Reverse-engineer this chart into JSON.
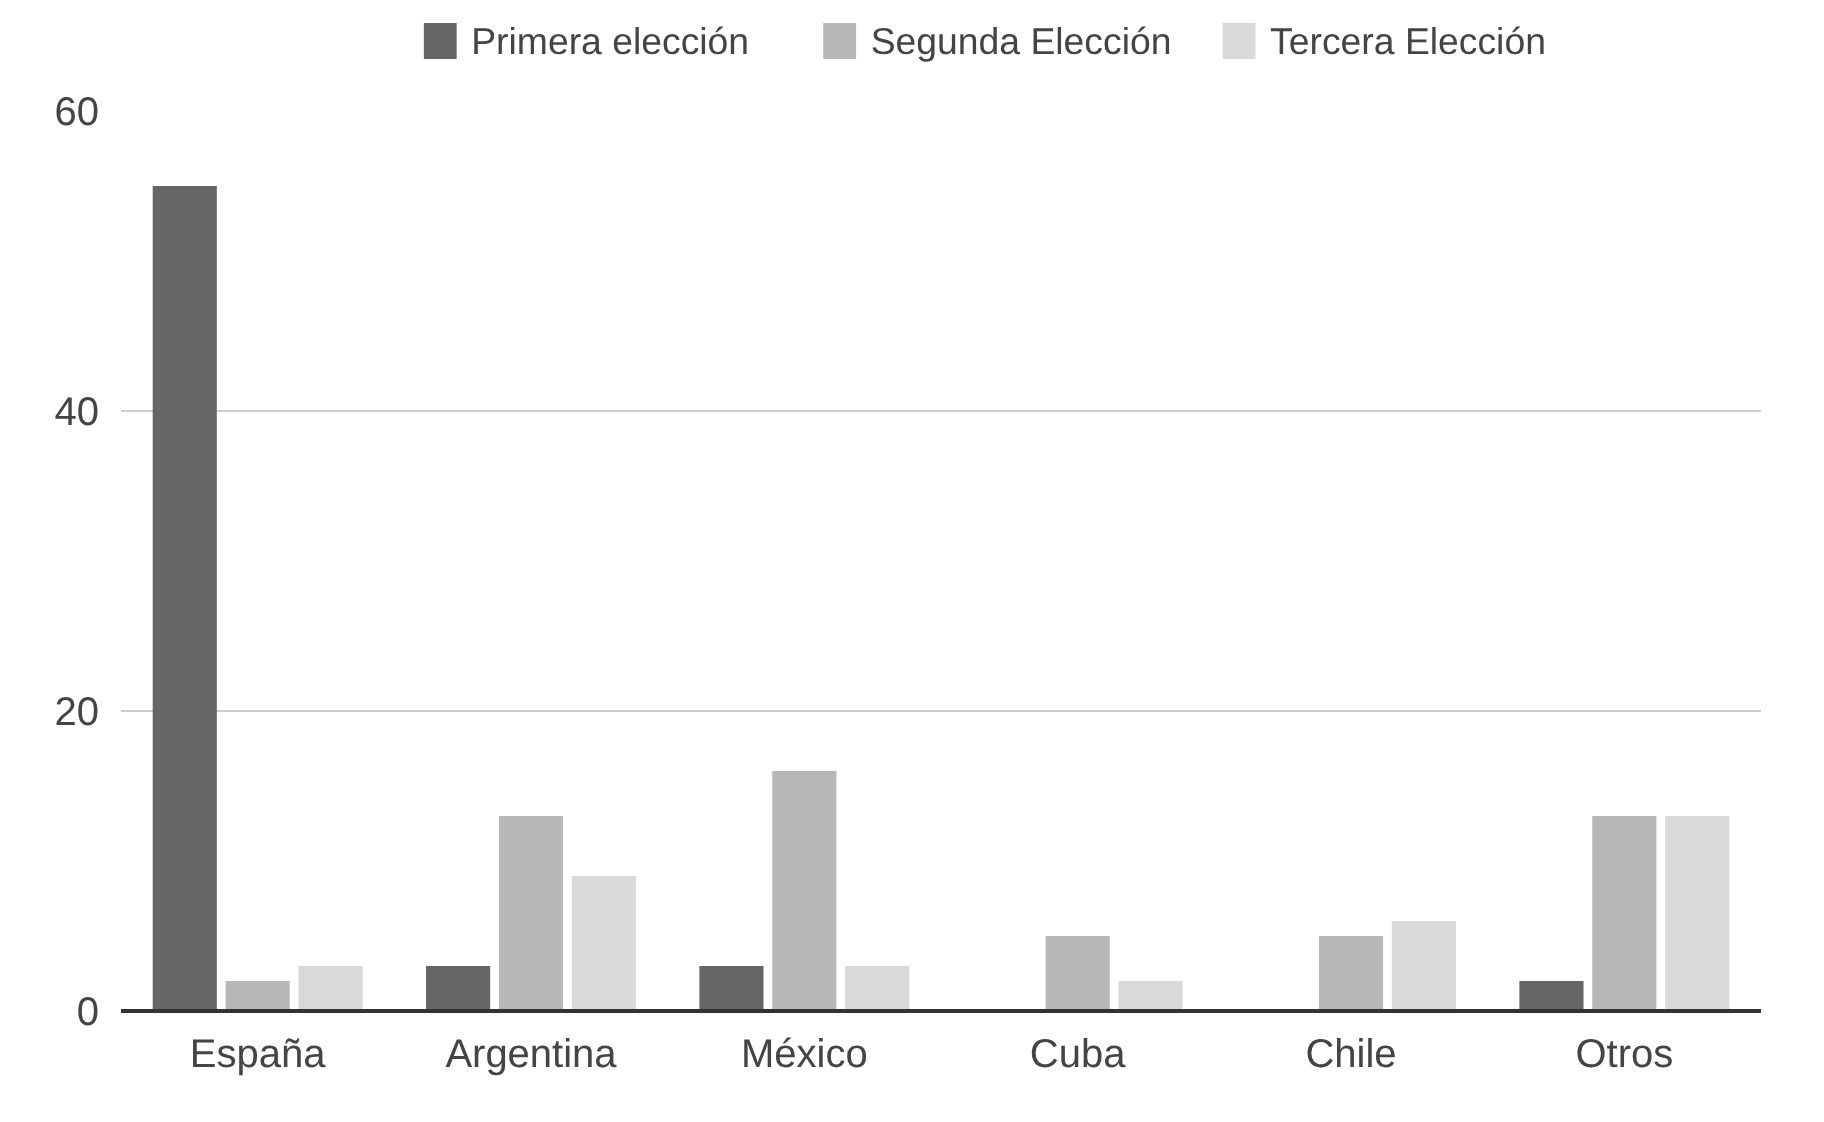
{
  "chart_data": {
    "type": "bar",
    "categories": [
      "España",
      "Argentina",
      "México",
      "Cuba",
      "Chile",
      "Otros"
    ],
    "series": [
      {
        "name": "Primera elección",
        "color": "#666666",
        "values": [
          55,
          3,
          3,
          null,
          null,
          2
        ]
      },
      {
        "name": "Segunda Elección",
        "color": "#b7b7b7",
        "values": [
          2,
          13,
          16,
          5,
          5,
          13
        ]
      },
      {
        "name": "Tercera Elección",
        "color": "#d9d9d9",
        "values": [
          3,
          9,
          3,
          2,
          6,
          13
        ]
      }
    ],
    "ylim": [
      0,
      60
    ],
    "yticks": [
      0,
      20,
      40,
      60
    ],
    "grid": "y",
    "legend": "top"
  }
}
